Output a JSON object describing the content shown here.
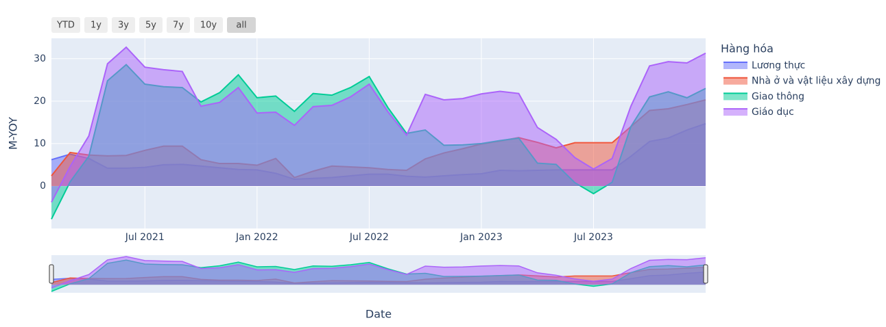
{
  "chart_data": {
    "type": "area",
    "x": [
      "2021-02",
      "2021-03",
      "2021-04",
      "2021-05",
      "2021-06",
      "2021-07",
      "2021-08",
      "2021-09",
      "2021-10",
      "2021-11",
      "2021-12",
      "2022-01",
      "2022-02",
      "2022-03",
      "2022-04",
      "2022-05",
      "2022-06",
      "2022-07",
      "2022-08",
      "2022-09",
      "2022-10",
      "2022-11",
      "2022-12",
      "2023-01",
      "2023-02",
      "2023-03",
      "2023-04",
      "2023-05",
      "2023-06",
      "2023-07",
      "2023-08",
      "2023-09",
      "2023-10",
      "2023-11",
      "2023-12",
      "2024-01"
    ],
    "series": [
      {
        "name": "Lương thực",
        "color": "#636efa",
        "values": [
          6.2,
          7.5,
          6.5,
          4.2,
          4.2,
          4.4,
          5.0,
          5.1,
          4.7,
          4.3,
          3.9,
          3.8,
          3.0,
          1.6,
          1.8,
          2.0,
          2.4,
          2.8,
          2.8,
          2.3,
          2.1,
          2.4,
          2.7,
          2.9,
          3.7,
          3.6,
          3.7,
          3.8,
          3.8,
          3.8,
          3.8,
          7.0,
          10.5,
          11.3,
          13.2,
          14.7
        ]
      },
      {
        "name": "Nhà ở và vật liệu xây dựng",
        "color": "#EF553B",
        "values": [
          2.4,
          7.9,
          7.3,
          7.1,
          7.2,
          8.4,
          9.4,
          9.4,
          6.2,
          5.3,
          5.3,
          4.9,
          6.5,
          2.0,
          3.5,
          4.7,
          4.5,
          4.3,
          3.9,
          3.7,
          6.4,
          7.8,
          8.8,
          9.9,
          10.6,
          11.4,
          10.3,
          9.0,
          10.2,
          10.2,
          10.2,
          14.0,
          17.8,
          18.2,
          19.2,
          20.3
        ]
      },
      {
        "name": "Giao thông",
        "color": "#00cc96",
        "values": [
          -7.8,
          1.0,
          7.0,
          24.8,
          28.6,
          24.0,
          23.4,
          23.2,
          19.8,
          22.0,
          26.2,
          20.8,
          21.2,
          17.6,
          21.8,
          21.4,
          23.2,
          25.8,
          18.5,
          12.4,
          13.2,
          9.6,
          9.7,
          10.0,
          10.7,
          11.3,
          5.4,
          5.1,
          0.8,
          -1.8,
          0.9,
          14.0,
          21.0,
          22.2,
          20.8,
          23.0
        ]
      },
      {
        "name": "Giáo dục",
        "color": "#ab63fa",
        "values": [
          -3.8,
          4.6,
          11.8,
          28.8,
          32.7,
          28.0,
          27.4,
          27.0,
          18.8,
          19.7,
          23.2,
          17.2,
          17.4,
          14.3,
          18.7,
          19.0,
          21.0,
          24.0,
          17.5,
          12.0,
          21.6,
          20.3,
          20.6,
          21.7,
          22.3,
          21.8,
          13.8,
          11.0,
          6.7,
          4.0,
          6.5,
          18.8,
          28.3,
          29.3,
          29.0,
          31.3
        ]
      }
    ],
    "xlim": [
      "2021-02",
      "2024-01"
    ],
    "xticks": [
      {
        "value": "2021-07",
        "label": "Jul 2021"
      },
      {
        "value": "2022-01",
        "label": "Jan 2022"
      },
      {
        "value": "2022-07",
        "label": "Jul 2022"
      },
      {
        "value": "2023-01",
        "label": "Jan 2023"
      },
      {
        "value": "2023-07",
        "label": "Jul 2023"
      }
    ],
    "ylim": [
      -10,
      34.8
    ],
    "yticks": [
      0,
      10,
      20,
      30
    ],
    "xlabel": "Date",
    "ylabel": "M-YOY",
    "legend_title": "Hàng hóa",
    "range_buttons": [
      "YTD",
      "1y",
      "3y",
      "5y",
      "7y",
      "10y",
      "all"
    ],
    "grid": true,
    "rangeslider": true
  }
}
